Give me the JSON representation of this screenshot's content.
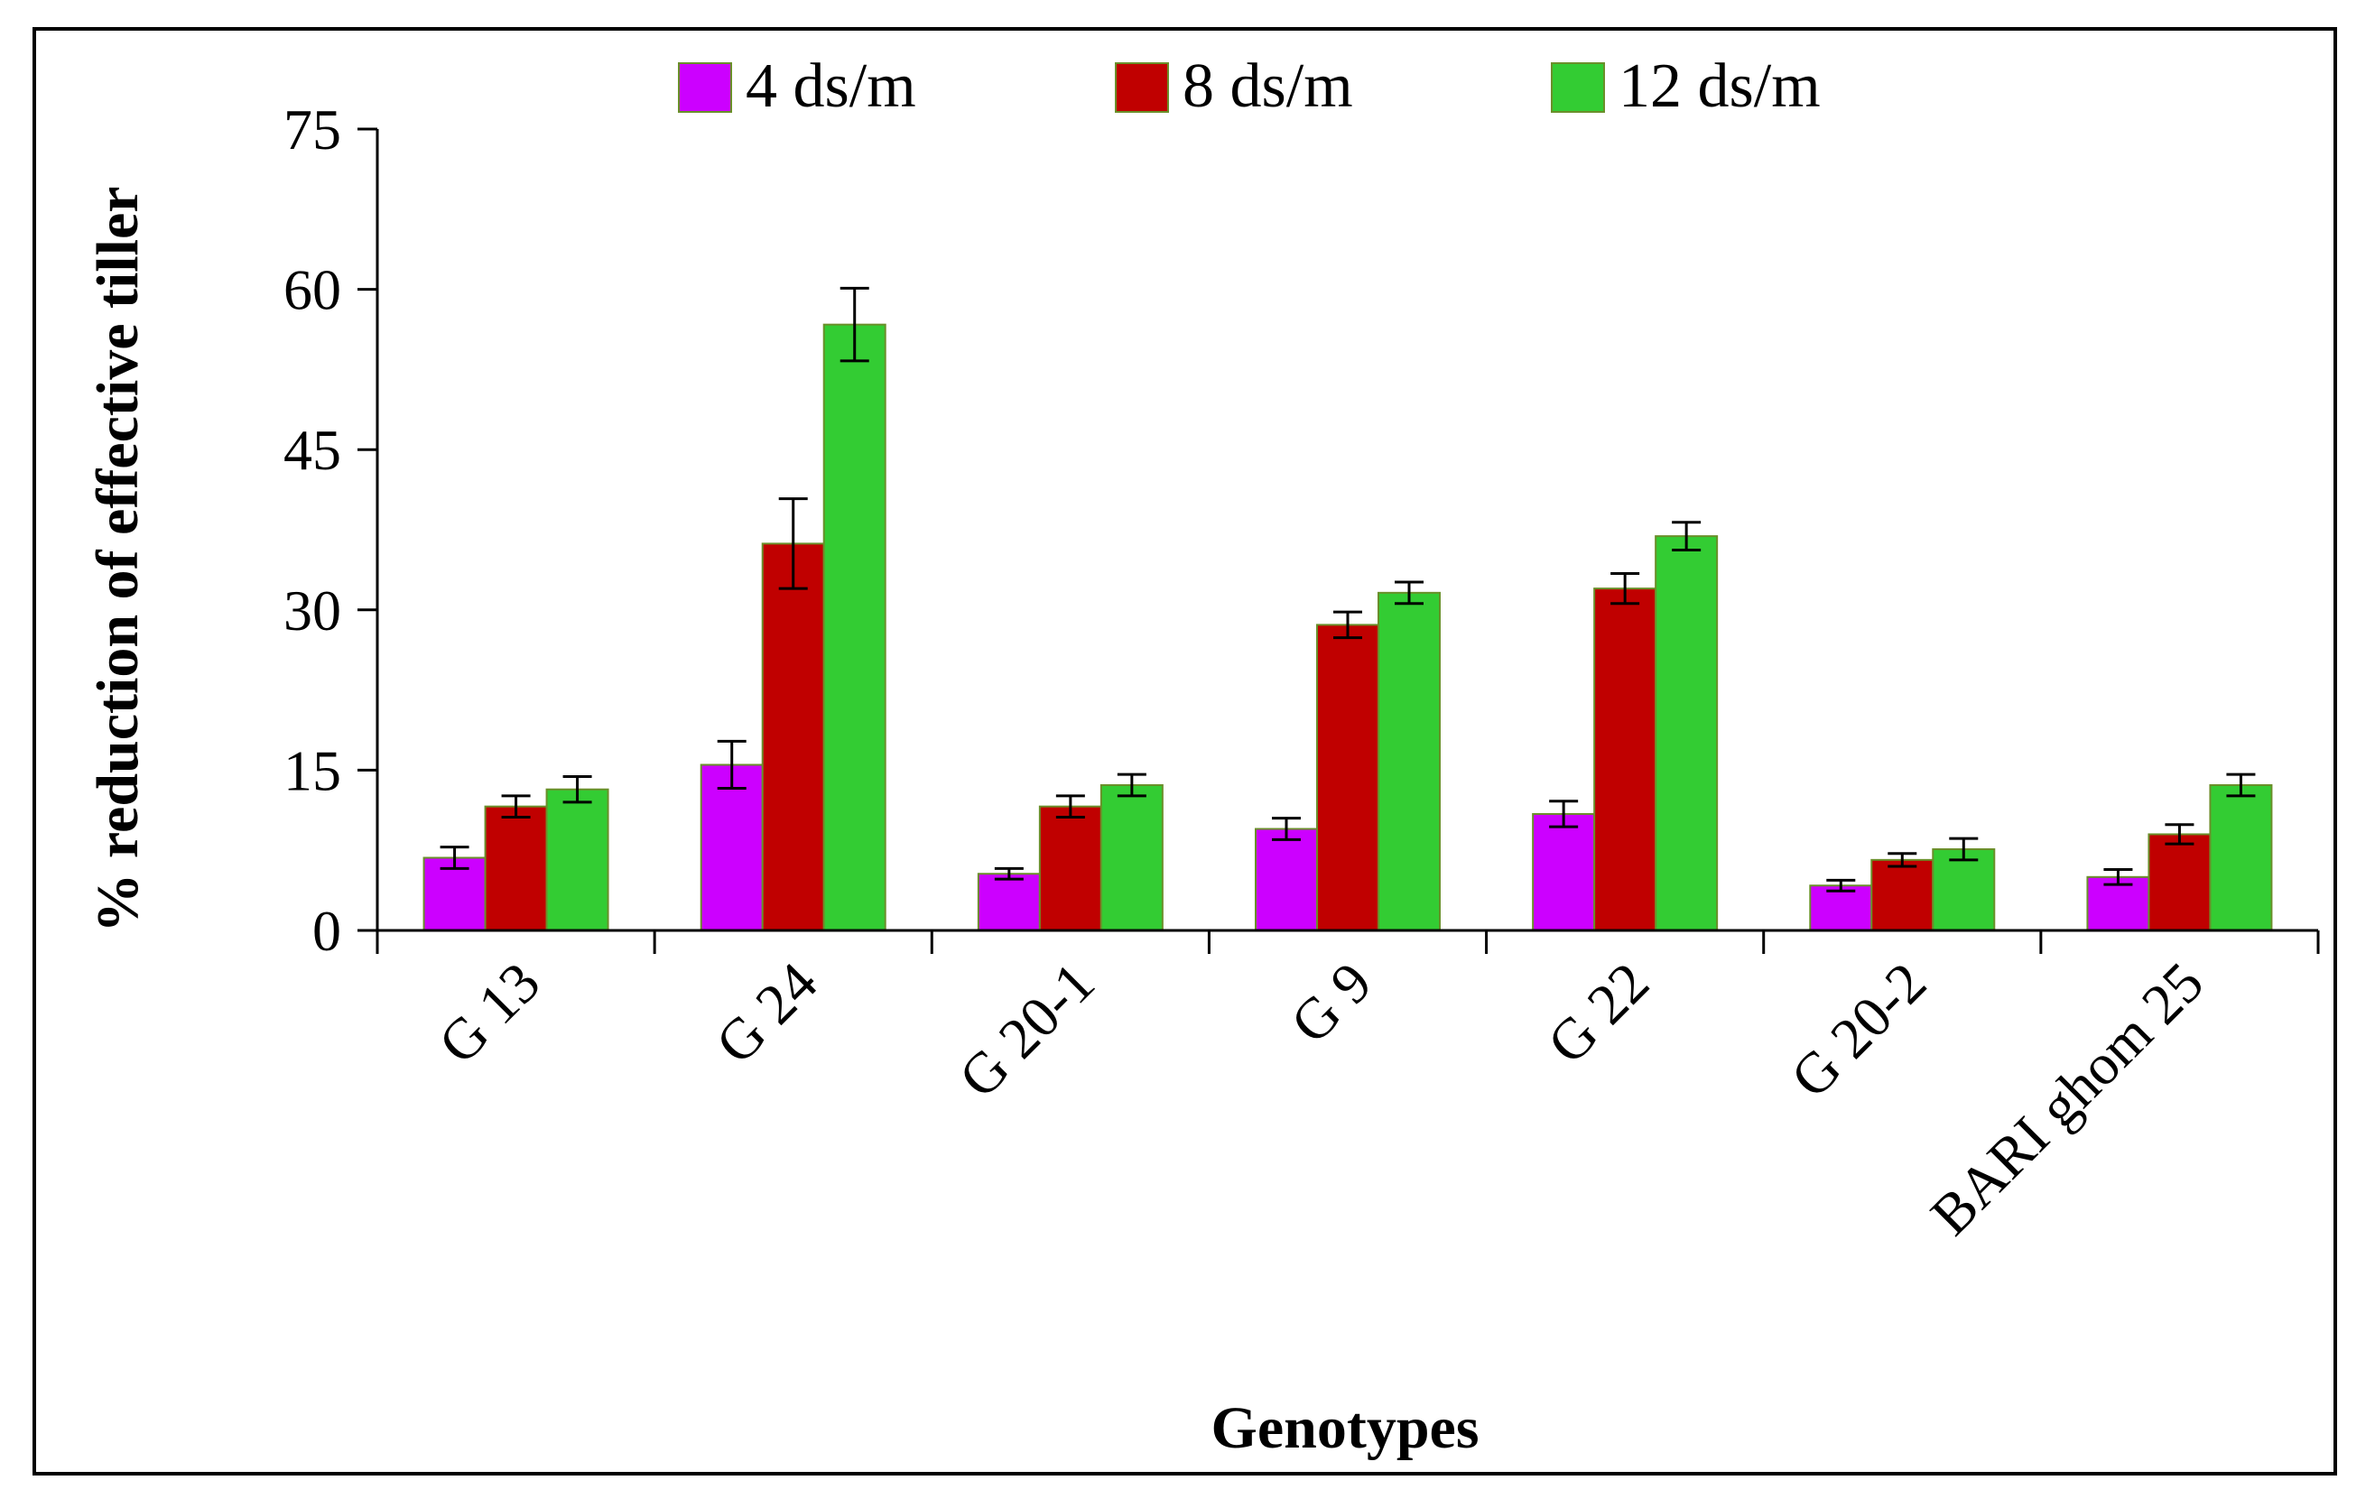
{
  "chart_data": {
    "type": "bar",
    "title": "",
    "xlabel": "Genotypes",
    "ylabel": "% reduction of effective tiller",
    "ylim": [
      0,
      75
    ],
    "yticks": [
      0,
      15,
      30,
      45,
      60,
      75
    ],
    "grid": false,
    "legend_position": "top-center",
    "categories": [
      "G 13",
      "G 24",
      "G 20-1",
      "G 9",
      "G 22",
      "G 20-2",
      "BARI ghom 25"
    ],
    "series": [
      {
        "name": "4 ds/m",
        "color": "#cc00ff",
        "values": [
          6.8,
          15.5,
          5.3,
          9.5,
          10.9,
          4.2,
          5.0
        ],
        "errors": [
          1.0,
          2.2,
          0.5,
          1.0,
          1.2,
          0.5,
          0.7
        ]
      },
      {
        "name": "8 ds/m",
        "color": "#c00000",
        "values": [
          11.6,
          36.2,
          11.6,
          28.6,
          32.0,
          6.6,
          9.0
        ],
        "errors": [
          1.0,
          4.2,
          1.0,
          1.2,
          1.4,
          0.6,
          0.9
        ]
      },
      {
        "name": "12 ds/m",
        "color": "#33cc33",
        "values": [
          13.2,
          56.7,
          13.6,
          31.6,
          36.9,
          7.6,
          13.6
        ],
        "errors": [
          1.2,
          3.4,
          1.0,
          1.0,
          1.3,
          1.0,
          1.0
        ]
      }
    ]
  }
}
